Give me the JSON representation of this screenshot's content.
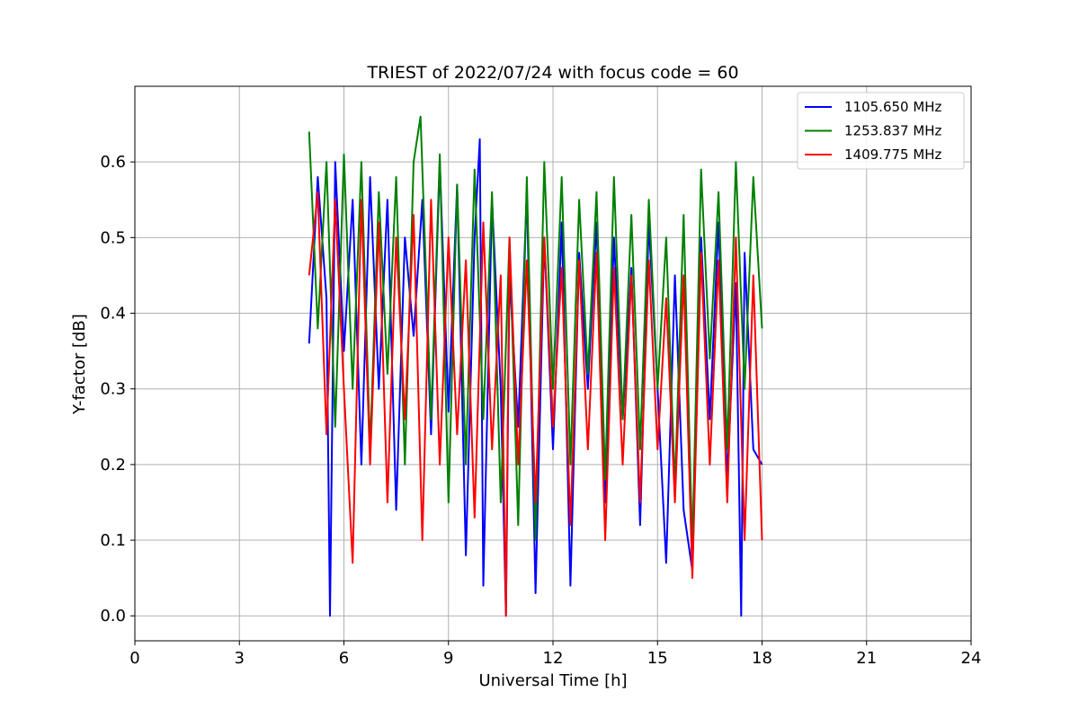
{
  "chart_data": {
    "type": "line",
    "title": "TRIEST of 2022/07/24 with focus code = 60",
    "xlabel": "Universal Time [h]",
    "ylabel": "Y-factor [dB]",
    "xlim": [
      0,
      24
    ],
    "ylim": [
      -0.033,
      0.7
    ],
    "xticks": [
      0,
      3,
      6,
      9,
      12,
      15,
      18,
      21,
      24
    ],
    "yticks": [
      0.0,
      0.1,
      0.2,
      0.3,
      0.4,
      0.5,
      0.6
    ],
    "ytick_labels": [
      "0.0",
      "0.1",
      "0.2",
      "0.3",
      "0.4",
      "0.5",
      "0.6"
    ],
    "grid": true,
    "legend_position": "top-right",
    "series": [
      {
        "name": "1105.650 MHz",
        "color": "#0000ff",
        "x": [
          5.0,
          5.25,
          5.5,
          5.6,
          5.75,
          6.0,
          6.25,
          6.5,
          6.75,
          7.0,
          7.25,
          7.5,
          7.75,
          8.0,
          8.25,
          8.5,
          8.75,
          9.0,
          9.25,
          9.5,
          9.75,
          9.9,
          10.0,
          10.25,
          10.5,
          10.65,
          10.75,
          11.0,
          11.25,
          11.5,
          11.75,
          12.0,
          12.25,
          12.5,
          12.75,
          13.0,
          13.25,
          13.5,
          13.75,
          14.0,
          14.25,
          14.5,
          14.75,
          15.0,
          15.25,
          15.5,
          15.75,
          16.0,
          16.25,
          16.5,
          16.75,
          17.0,
          17.25,
          17.4,
          17.5,
          17.75,
          18.0
        ],
        "y": [
          0.36,
          0.58,
          0.42,
          0.0,
          0.6,
          0.35,
          0.55,
          0.2,
          0.58,
          0.3,
          0.55,
          0.14,
          0.5,
          0.37,
          0.55,
          0.24,
          0.6,
          0.27,
          0.57,
          0.08,
          0.5,
          0.63,
          0.04,
          0.55,
          0.3,
          0.0,
          0.45,
          0.25,
          0.56,
          0.03,
          0.5,
          0.22,
          0.52,
          0.04,
          0.48,
          0.3,
          0.52,
          0.15,
          0.5,
          0.26,
          0.46,
          0.12,
          0.52,
          0.3,
          0.07,
          0.45,
          0.14,
          0.06,
          0.5,
          0.26,
          0.52,
          0.18,
          0.44,
          0.0,
          0.48,
          0.22,
          0.2
        ]
      },
      {
        "name": "1253.837 MHz",
        "color": "#008000",
        "x": [
          5.0,
          5.25,
          5.5,
          5.75,
          6.0,
          6.25,
          6.5,
          6.75,
          7.0,
          7.25,
          7.5,
          7.75,
          8.0,
          8.2,
          8.5,
          8.75,
          9.0,
          9.25,
          9.5,
          9.75,
          10.0,
          10.25,
          10.5,
          10.75,
          11.0,
          11.25,
          11.5,
          11.75,
          12.0,
          12.25,
          12.5,
          12.75,
          13.0,
          13.25,
          13.5,
          13.75,
          14.0,
          14.25,
          14.5,
          14.75,
          15.0,
          15.25,
          15.5,
          15.75,
          16.0,
          16.25,
          16.5,
          16.75,
          17.0,
          17.25,
          17.5,
          17.75,
          18.0
        ],
        "y": [
          0.64,
          0.38,
          0.6,
          0.25,
          0.61,
          0.3,
          0.6,
          0.22,
          0.56,
          0.32,
          0.58,
          0.2,
          0.6,
          0.66,
          0.26,
          0.61,
          0.15,
          0.57,
          0.2,
          0.59,
          0.26,
          0.56,
          0.15,
          0.5,
          0.12,
          0.58,
          0.1,
          0.6,
          0.3,
          0.58,
          0.2,
          0.55,
          0.32,
          0.56,
          0.18,
          0.58,
          0.26,
          0.53,
          0.22,
          0.55,
          0.3,
          0.5,
          0.17,
          0.53,
          0.09,
          0.59,
          0.34,
          0.56,
          0.22,
          0.6,
          0.3,
          0.58,
          0.38
        ]
      },
      {
        "name": "1409.775 MHz",
        "color": "#ff0000",
        "x": [
          5.0,
          5.25,
          5.5,
          5.75,
          6.0,
          6.25,
          6.5,
          6.75,
          7.0,
          7.25,
          7.5,
          7.75,
          8.0,
          8.25,
          8.5,
          8.75,
          9.0,
          9.25,
          9.5,
          9.75,
          10.0,
          10.25,
          10.5,
          10.65,
          10.75,
          11.0,
          11.25,
          11.5,
          11.75,
          12.0,
          12.25,
          12.5,
          12.75,
          13.0,
          13.25,
          13.5,
          13.75,
          14.0,
          14.25,
          14.5,
          14.75,
          15.0,
          15.25,
          15.5,
          15.75,
          16.0,
          16.25,
          16.5,
          16.75,
          17.0,
          17.25,
          17.5,
          17.75,
          18.0
        ],
        "y": [
          0.45,
          0.56,
          0.24,
          0.55,
          0.3,
          0.07,
          0.55,
          0.2,
          0.52,
          0.15,
          0.5,
          0.26,
          0.53,
          0.1,
          0.55,
          0.2,
          0.5,
          0.24,
          0.47,
          0.13,
          0.52,
          0.22,
          0.45,
          0.0,
          0.5,
          0.2,
          0.47,
          0.15,
          0.5,
          0.25,
          0.46,
          0.12,
          0.47,
          0.22,
          0.48,
          0.1,
          0.46,
          0.2,
          0.45,
          0.15,
          0.47,
          0.22,
          0.42,
          0.15,
          0.45,
          0.05,
          0.48,
          0.2,
          0.47,
          0.15,
          0.5,
          0.1,
          0.45,
          0.1
        ]
      }
    ]
  }
}
